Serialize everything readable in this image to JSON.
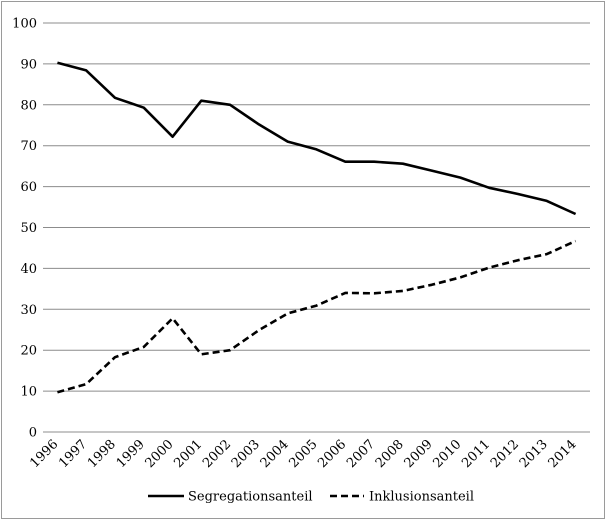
{
  "chart_data": {
    "type": "line",
    "title": "",
    "xlabel": "",
    "ylabel": "",
    "ylim": [
      0,
      100
    ],
    "yticks": [
      0,
      10,
      20,
      30,
      40,
      50,
      60,
      70,
      80,
      90,
      100
    ],
    "grid": "horizontal",
    "legend_position": "bottom",
    "x": [
      "1996",
      "1997",
      "1998",
      "1999",
      "2000",
      "2001",
      "2002",
      "2003",
      "2004",
      "2005",
      "2006",
      "2007",
      "2008",
      "2009",
      "2010",
      "2011",
      "2012",
      "2013",
      "2014"
    ],
    "series": [
      {
        "name": "Segregationsanteil",
        "style": "solid",
        "color": "#000000",
        "values": [
          90.3,
          88.4,
          81.7,
          79.3,
          72.2,
          81.0,
          80.0,
          75.2,
          71.0,
          69.1,
          66.1,
          66.1,
          65.6,
          63.9,
          62.2,
          59.7,
          58.2,
          56.5,
          53.3
        ]
      },
      {
        "name": "Inklusionsanteil",
        "style": "dashed",
        "color": "#000000",
        "values": [
          9.7,
          11.7,
          18.3,
          20.8,
          27.8,
          19.0,
          20.0,
          24.9,
          29.0,
          30.9,
          34.0,
          33.9,
          34.5,
          36.0,
          37.8,
          40.2,
          42.0,
          43.5,
          46.7
        ]
      }
    ]
  }
}
